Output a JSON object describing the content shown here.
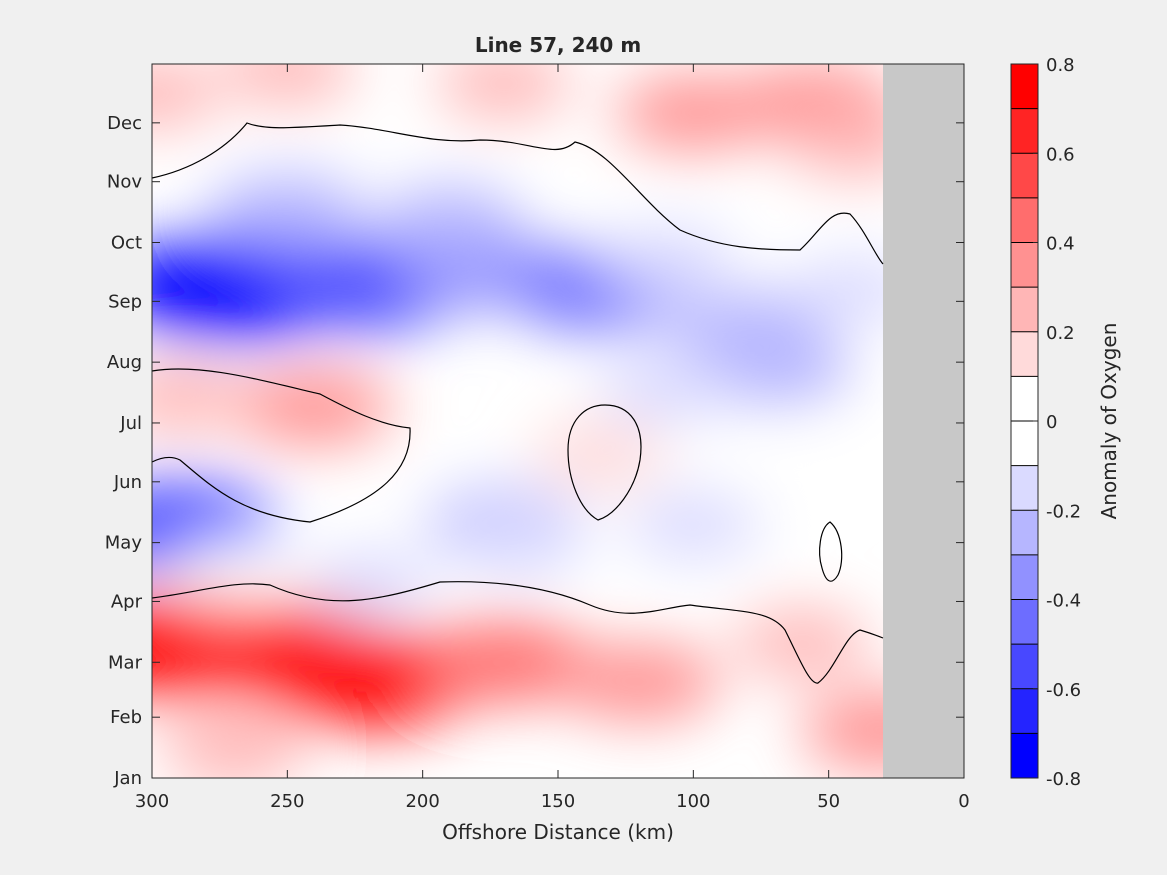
{
  "colors": {
    "background": "#f0f0f0",
    "land": "#c8c8c8",
    "contour_line": "#000000",
    "scale": [
      "#0000ff",
      "#2424ff",
      "#4848ff",
      "#6d6dff",
      "#9191ff",
      "#b6b6ff",
      "#dadaff",
      "#ffffff",
      "#ffffff",
      "#ffdada",
      "#ffb6b6",
      "#ff9191",
      "#ff6d6d",
      "#ff4848",
      "#ff2424",
      "#ff0000"
    ]
  },
  "chart_data": {
    "type": "heatmap",
    "title": "Line 57, 240 m",
    "xlabel": "Offshore Distance (km)",
    "ylabel": "",
    "xlim": [
      300,
      0
    ],
    "x_reversed": true,
    "x_ticks": [
      300,
      250,
      200,
      150,
      100,
      50,
      0
    ],
    "y_ticks": [
      "Jan",
      "Feb",
      "Mar",
      "Apr",
      "May",
      "Jun",
      "Jul",
      "Aug",
      "Sep",
      "Oct",
      "Nov",
      "Dec"
    ],
    "y_tick_days": [
      1,
      32,
      60,
      91,
      121,
      152,
      182,
      213,
      244,
      274,
      305,
      335
    ],
    "ylim_days": [
      1,
      365
    ],
    "data_x_extent_km": [
      300,
      30
    ],
    "colorbar": {
      "label": "Anomaly of Oxygen",
      "range": [
        -0.8,
        0.8
      ],
      "step": 0.1,
      "tick_labels": [
        "-0.8",
        "-0.6",
        "-0.4",
        "-0.2",
        "0",
        "0.2",
        "0.4",
        "0.6",
        "0.8"
      ]
    },
    "grid": false,
    "zero_contour": true,
    "anomaly_features": [
      {
        "x_km": 290,
        "day": 68,
        "value": 0.78
      },
      {
        "x_km": 255,
        "day": 66,
        "value": 0.65
      },
      {
        "x_km": 220,
        "day": 52,
        "value": 0.7
      },
      {
        "x_km": 170,
        "day": 60,
        "value": 0.42
      },
      {
        "x_km": 120,
        "day": 50,
        "value": 0.35
      },
      {
        "x_km": 60,
        "day": 70,
        "value": 0.2
      },
      {
        "x_km": 30,
        "day": 25,
        "value": 0.35
      },
      {
        "x_km": 270,
        "day": 15,
        "value": 0.25
      },
      {
        "x_km": 240,
        "day": 190,
        "value": 0.32
      },
      {
        "x_km": 290,
        "day": 195,
        "value": 0.2
      },
      {
        "x_km": 135,
        "day": 166,
        "value": 0.18
      },
      {
        "x_km": 290,
        "day": 130,
        "value": -0.52
      },
      {
        "x_km": 270,
        "day": 106,
        "value": -0.1
      },
      {
        "x_km": 220,
        "day": 100,
        "value": -0.15
      },
      {
        "x_km": 170,
        "day": 130,
        "value": -0.3
      },
      {
        "x_km": 100,
        "day": 130,
        "value": -0.2
      },
      {
        "x_km": 165,
        "day": 120,
        "value": -0.15
      },
      {
        "x_km": 270,
        "day": 251,
        "value": -0.82
      },
      {
        "x_km": 220,
        "day": 252,
        "value": -0.55
      },
      {
        "x_km": 180,
        "day": 260,
        "value": -0.35
      },
      {
        "x_km": 135,
        "day": 250,
        "value": -0.42
      },
      {
        "x_km": 80,
        "day": 230,
        "value": -0.3
      },
      {
        "x_km": 70,
        "day": 210,
        "value": -0.3
      },
      {
        "x_km": 40,
        "day": 250,
        "value": -0.15
      },
      {
        "x_km": 250,
        "day": 290,
        "value": -0.3
      },
      {
        "x_km": 190,
        "day": 285,
        "value": -0.22
      },
      {
        "x_km": 110,
        "day": 265,
        "value": -0.2
      },
      {
        "x_km": 110,
        "day": 200,
        "value": -0.2
      },
      {
        "x_km": 60,
        "day": 160,
        "value": -0.08
      },
      {
        "x_km": 300,
        "day": 350,
        "value": 0.2
      },
      {
        "x_km": 250,
        "day": 362,
        "value": 0.2
      },
      {
        "x_km": 170,
        "day": 355,
        "value": 0.2
      },
      {
        "x_km": 100,
        "day": 340,
        "value": 0.3
      },
      {
        "x_km": 55,
        "day": 345,
        "value": 0.38
      },
      {
        "x_km": 40,
        "day": 325,
        "value": 0.22
      }
    ]
  }
}
